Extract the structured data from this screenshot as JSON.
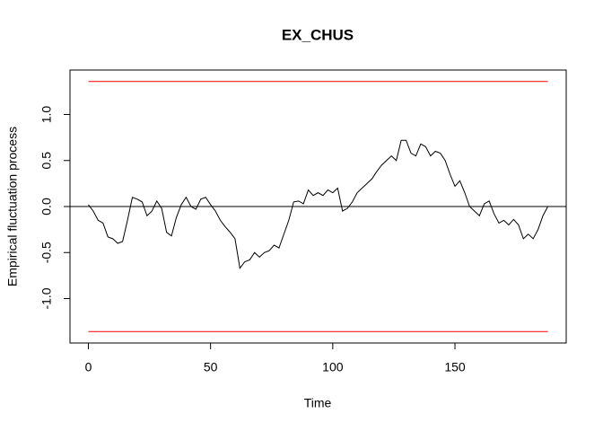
{
  "chart_data": {
    "type": "line",
    "title": "EX_CHUS",
    "xlabel": "Time",
    "ylabel": "Empirical fluctuation process",
    "x": [
      0,
      2,
      4,
      6,
      8,
      10,
      12,
      14,
      16,
      18,
      20,
      22,
      24,
      26,
      28,
      30,
      32,
      34,
      36,
      38,
      40,
      42,
      44,
      46,
      48,
      50,
      52,
      54,
      56,
      58,
      60,
      62,
      64,
      66,
      68,
      70,
      72,
      74,
      76,
      78,
      80,
      82,
      84,
      86,
      88,
      90,
      92,
      94,
      96,
      98,
      100,
      102,
      104,
      106,
      108,
      110,
      112,
      114,
      116,
      118,
      120,
      122,
      124,
      126,
      128,
      130,
      132,
      134,
      136,
      138,
      140,
      142,
      144,
      146,
      148,
      150,
      152,
      154,
      156,
      158,
      160,
      162,
      164,
      166,
      168,
      170,
      172,
      174,
      176,
      178,
      180,
      182,
      184,
      186,
      188
    ],
    "values": [
      0.02,
      -0.05,
      -0.15,
      -0.18,
      -0.33,
      -0.35,
      -0.4,
      -0.38,
      -0.15,
      0.1,
      0.08,
      0.05,
      -0.1,
      -0.05,
      0.06,
      -0.02,
      -0.28,
      -0.32,
      -0.12,
      0.02,
      0.1,
      0.0,
      -0.03,
      0.08,
      0.1,
      0.02,
      -0.05,
      -0.15,
      -0.22,
      -0.28,
      -0.35,
      -0.67,
      -0.6,
      -0.58,
      -0.5,
      -0.55,
      -0.5,
      -0.48,
      -0.42,
      -0.45,
      -0.3,
      -0.15,
      0.05,
      0.06,
      0.03,
      0.18,
      0.12,
      0.15,
      0.12,
      0.18,
      0.15,
      0.2,
      -0.05,
      -0.02,
      0.05,
      0.15,
      0.2,
      0.25,
      0.3,
      0.38,
      0.45,
      0.5,
      0.55,
      0.5,
      0.72,
      0.72,
      0.58,
      0.55,
      0.68,
      0.65,
      0.55,
      0.6,
      0.58,
      0.5,
      0.35,
      0.22,
      0.28,
      0.15,
      0.0,
      -0.05,
      -0.1,
      0.03,
      0.06,
      -0.08,
      -0.18,
      -0.15,
      -0.2,
      -0.14,
      -0.2,
      -0.35,
      -0.3,
      -0.35,
      -0.25,
      -0.1,
      0.0
    ],
    "color": "#000000",
    "boundaries": [
      1.358,
      -1.358
    ],
    "boundary_color": "#ff0000",
    "reference_line": 0,
    "xlim": [
      -7.52,
      195.52
    ],
    "ylim": [
      -1.483,
      1.483
    ],
    "xticks": [
      0,
      50,
      100,
      150
    ],
    "yticks": [
      {
        "value": -1,
        "label": "-1.0"
      },
      -0.5,
      {
        "value": 0,
        "label": "0.0"
      },
      0.5,
      {
        "value": 1,
        "label": "1.0"
      }
    ]
  }
}
